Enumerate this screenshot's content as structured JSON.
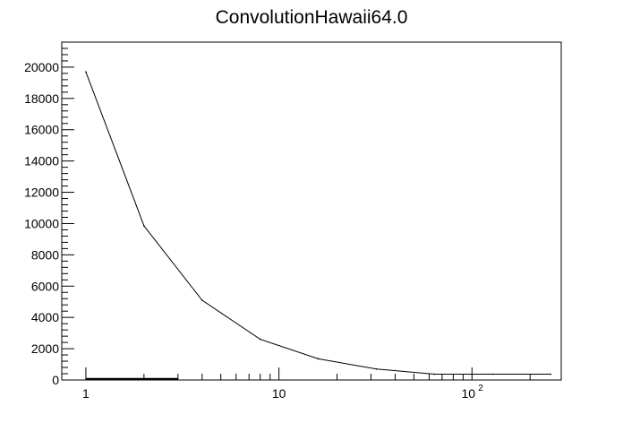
{
  "chart_data": {
    "type": "line",
    "title": "ConvolutionHawaii64.0",
    "xlabel": "",
    "ylabel": "",
    "x_scale": "log",
    "xlim": [
      0.75,
      290
    ],
    "ylim": [
      0,
      21600
    ],
    "grid": false,
    "x_tick_labels": [
      {
        "value": 1,
        "text": "1"
      },
      {
        "value": 10,
        "text": "10"
      },
      {
        "value": 100,
        "base": "10",
        "exp": "2"
      }
    ],
    "y_ticks": [
      0,
      2000,
      4000,
      6000,
      8000,
      10000,
      12000,
      14000,
      16000,
      18000,
      20000
    ],
    "y_tick_labels": [
      "0",
      "2000",
      "4000",
      "6000",
      "8000",
      "10000",
      "12000",
      "14000",
      "16000",
      "18000",
      "20000"
    ],
    "series": [
      {
        "color": "#000000",
        "x": [
          1,
          2,
          4,
          8,
          16,
          32,
          64,
          128,
          256
        ],
        "y": [
          19700,
          9850,
          5100,
          2600,
          1350,
          700,
          370,
          370,
          370
        ]
      }
    ],
    "baseline_segment": {
      "x_start": 1,
      "x_end": 3
    }
  }
}
